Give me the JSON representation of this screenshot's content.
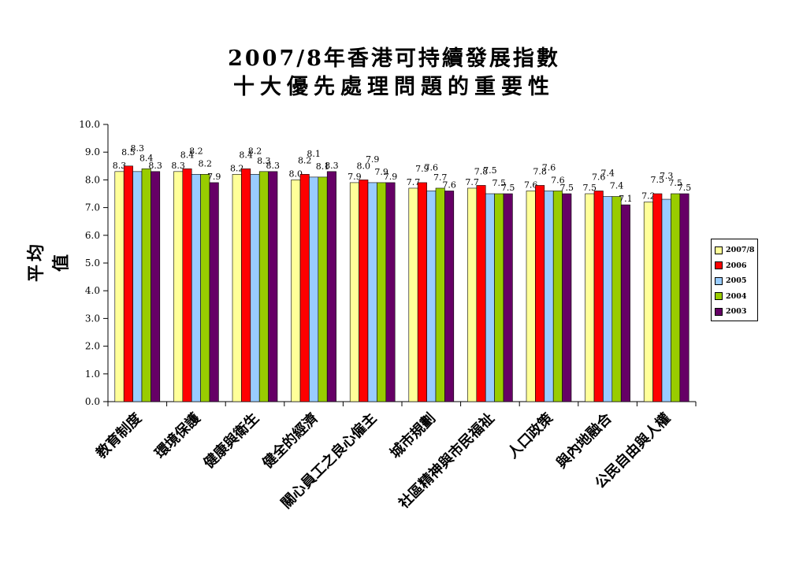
{
  "title_line1": "2007/8年香港可持續發展指數",
  "title_line2": "十大優先處理問題的重要性",
  "chart_data": {
    "type": "bar",
    "title": "2007/8年香港可持續發展指數 十大優先處理問題的重要性",
    "ylabel": "平均值",
    "xlabel": "",
    "ylim": [
      0,
      10
    ],
    "yticks": [
      "0.0",
      "1.0",
      "2.0",
      "3.0",
      "4.0",
      "5.0",
      "6.0",
      "7.0",
      "8.0",
      "9.0",
      "10.0"
    ],
    "grid": false,
    "legend_position": "right",
    "categories": [
      "教育制度",
      "環境保護",
      "健康與衛生",
      "健全的經濟",
      "關心員工之良心僱主",
      "城市規劃",
      "社區精神與市民福祉",
      "人口政策",
      "與內地融合",
      "公民自由與人權"
    ],
    "series": [
      {
        "name": "2007/8",
        "color": "#ffff99",
        "values": [
          8.3,
          8.3,
          8.2,
          8.0,
          7.9,
          7.7,
          7.7,
          7.6,
          7.5,
          7.2
        ]
      },
      {
        "name": "2006",
        "color": "#ff0000",
        "values": [
          8.5,
          8.4,
          8.4,
          8.2,
          8.0,
          7.9,
          7.8,
          7.8,
          7.6,
          7.5
        ]
      },
      {
        "name": "2005",
        "color": "#99ccff",
        "values": [
          8.3,
          8.2,
          8.2,
          8.1,
          7.9,
          7.6,
          7.5,
          7.6,
          7.4,
          7.3
        ]
      },
      {
        "name": "2004",
        "color": "#99cc00",
        "values": [
          8.4,
          8.2,
          8.3,
          8.1,
          7.9,
          7.7,
          7.5,
          7.6,
          7.4,
          7.5
        ]
      },
      {
        "name": "2003",
        "color": "#660066",
        "values": [
          8.3,
          7.9,
          8.3,
          8.3,
          7.9,
          7.6,
          7.5,
          7.5,
          7.1,
          7.5
        ]
      }
    ]
  }
}
